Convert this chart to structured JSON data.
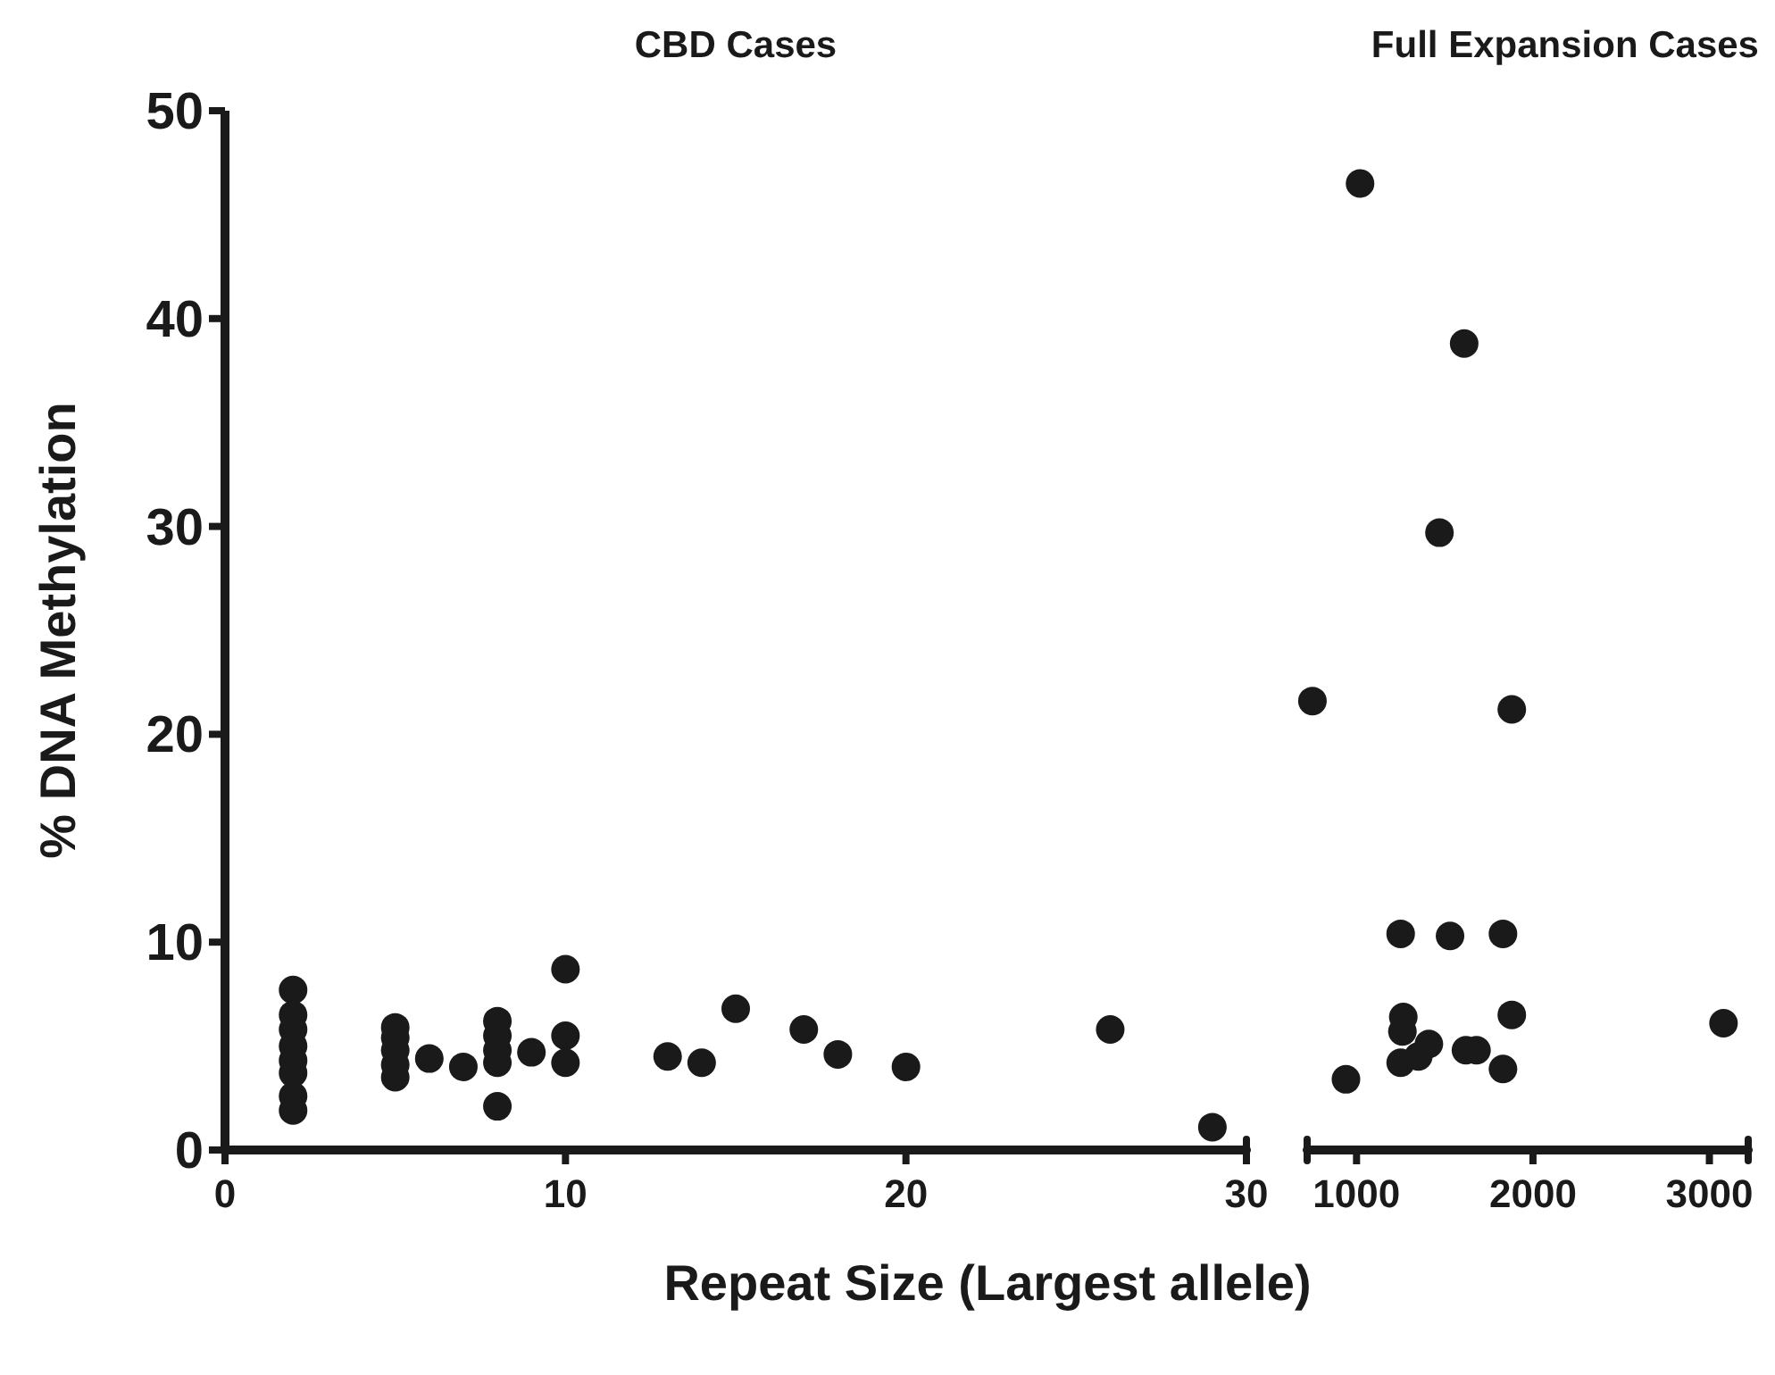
{
  "chart_data": [
    {
      "type": "scatter",
      "title": "CBD Cases",
      "xlabel": "Repeat Size (Largest allele)",
      "ylabel": "% DNA Methylation",
      "marker": "circle",
      "xlim": [
        0,
        30
      ],
      "xticks": [
        0,
        10,
        20,
        30
      ],
      "ylim": [
        0,
        50
      ],
      "yticks": [
        0,
        10,
        20,
        30,
        40,
        50
      ],
      "series": [
        {
          "color": "#1a1a1a",
          "x": [
            2,
            2,
            2,
            2,
            2,
            2,
            2,
            2,
            5,
            5,
            5,
            5,
            5,
            6,
            7,
            8,
            8,
            8,
            8,
            8,
            9,
            10,
            10,
            10,
            13,
            14,
            15,
            17,
            18,
            20,
            26,
            29
          ],
          "values": [
            7.7,
            6.5,
            5.8,
            5.0,
            4.3,
            3.7,
            2.6,
            1.9,
            5.9,
            5.4,
            4.8,
            4.1,
            3.5,
            4.4,
            4.0,
            6.2,
            5.5,
            4.8,
            4.2,
            2.1,
            4.7,
            8.7,
            5.5,
            4.2,
            4.5,
            4.2,
            6.8,
            5.8,
            4.6,
            4.0,
            5.8,
            1.1
          ]
        }
      ]
    },
    {
      "type": "scatter",
      "title": "Full Expansion Cases",
      "marker": "circle",
      "tick_labels": "x",
      "xlim": [
        720,
        3220
      ],
      "xticks": [
        1000,
        2000,
        3000
      ],
      "ylim": [
        0,
        50
      ],
      "series": [
        {
          "color": "#1a1a1a",
          "x": [
            1020,
            1610,
            1470,
            750,
            1880,
            1250,
            1530,
            1830,
            1265,
            1880,
            3080,
            1260,
            1410,
            1250,
            1350,
            1620,
            1680,
            1830,
            940
          ],
          "values": [
            46.5,
            38.8,
            29.7,
            21.6,
            21.2,
            10.4,
            10.3,
            10.4,
            6.4,
            6.5,
            6.1,
            5.7,
            5.1,
            4.2,
            4.5,
            4.8,
            4.8,
            3.9,
            3.4
          ]
        }
      ]
    }
  ]
}
